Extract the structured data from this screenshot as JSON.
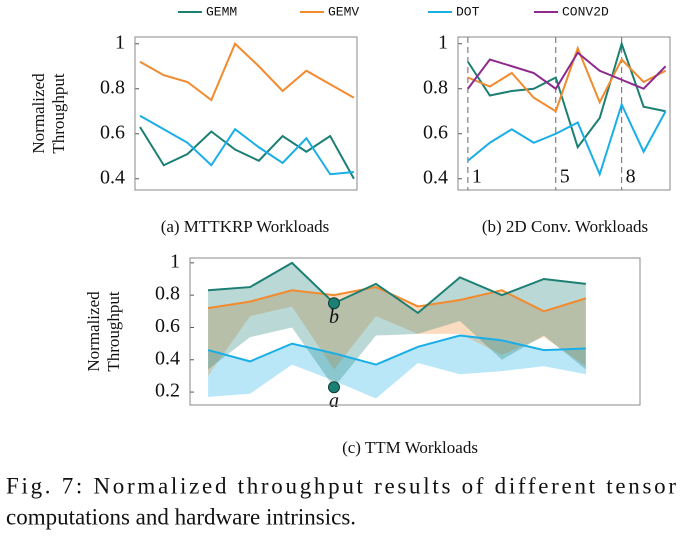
{
  "chart_data": [
    {
      "type": "line",
      "caption": "(a) MTTKRP Workloads",
      "ylabel_lines": [
        "Normalized",
        "Throughput"
      ],
      "x": [
        1,
        2,
        3,
        4,
        5,
        6,
        7,
        8,
        9,
        10
      ],
      "xlim": [
        0.79,
        10.13
      ],
      "ylim": [
        0.35,
        1.03
      ],
      "yticks": [
        0.4,
        0.6,
        0.8,
        1
      ],
      "series": [
        {
          "name": "GEMM",
          "color": "#1b7f74",
          "values": [
            0.63,
            0.46,
            0.51,
            0.61,
            0.53,
            0.48,
            0.59,
            0.52,
            0.59,
            0.4
          ]
        },
        {
          "name": "GEMV",
          "color": "#f28a2e",
          "values": [
            0.92,
            0.86,
            0.83,
            0.75,
            1.0,
            0.9,
            0.79,
            0.88,
            0.82,
            0.76
          ]
        },
        {
          "name": "DOT",
          "color": "#1aaee6",
          "values": [
            0.68,
            0.62,
            0.56,
            0.46,
            0.62,
            0.54,
            0.47,
            0.58,
            0.42,
            0.43
          ]
        }
      ]
    },
    {
      "type": "line",
      "caption": "(b) 2D Conv. Workloads",
      "x": [
        1,
        2,
        3,
        4,
        5,
        6,
        7,
        8,
        9,
        10
      ],
      "xlim": [
        0.55,
        10.2
      ],
      "xticks": [
        1,
        5,
        8
      ],
      "xgrid": true,
      "ylim": [
        0.35,
        1.03
      ],
      "yticks": [
        0.4,
        0.6,
        0.8,
        1
      ],
      "series": [
        {
          "name": "GEMM",
          "color": "#1b7f74",
          "values": [
            0.92,
            0.77,
            0.79,
            0.8,
            0.85,
            0.54,
            0.67,
            1.0,
            0.72,
            0.7
          ]
        },
        {
          "name": "GEMV",
          "color": "#f28a2e",
          "values": [
            0.85,
            0.81,
            0.87,
            0.76,
            0.7,
            0.98,
            0.74,
            0.93,
            0.83,
            0.88
          ]
        },
        {
          "name": "DOT",
          "color": "#1aaee6",
          "values": [
            0.48,
            0.56,
            0.62,
            0.56,
            0.6,
            0.65,
            0.42,
            0.73,
            0.52,
            0.7
          ]
        },
        {
          "name": "CONV2D",
          "color": "#8e2a8e",
          "values": [
            0.8,
            0.93,
            0.9,
            0.87,
            0.8,
            0.96,
            0.88,
            0.84,
            0.8,
            0.9
          ]
        }
      ]
    },
    {
      "type": "band",
      "caption": "(c) TTM Workloads",
      "ylabel_lines": [
        "Normalized",
        "Throughput"
      ],
      "x": [
        1,
        2,
        3,
        4,
        5,
        6,
        7,
        8,
        9,
        10
      ],
      "xlim": [
        0.57,
        11.29
      ],
      "ylim": [
        0.12,
        1.03
      ],
      "yticks": [
        0.2,
        0.4,
        0.6,
        0.8,
        1
      ],
      "series": [
        {
          "name": "DOT",
          "color": "#1aaee6",
          "values": [
            0.46,
            0.39,
            0.5,
            0.44,
            0.37,
            0.48,
            0.55,
            0.52,
            0.46,
            0.47
          ],
          "range_min": [
            0.17,
            0.19,
            0.37,
            0.27,
            0.16,
            0.38,
            0.31,
            0.33,
            0.36,
            0.31
          ]
        },
        {
          "name": "GEMV",
          "color": "#f28a2e",
          "values": [
            0.72,
            0.76,
            0.83,
            0.8,
            0.85,
            0.73,
            0.77,
            0.83,
            0.7,
            0.78
          ],
          "range_min": [
            0.3,
            0.67,
            0.73,
            0.34,
            0.67,
            0.56,
            0.56,
            0.43,
            0.54,
            0.36
          ]
        },
        {
          "name": "GEMM",
          "color": "#1b7f74",
          "values": [
            0.83,
            0.85,
            1.0,
            0.75,
            0.87,
            0.69,
            0.91,
            0.8,
            0.9,
            0.87
          ],
          "range_min": [
            0.34,
            0.54,
            0.6,
            0.23,
            0.55,
            0.56,
            0.64,
            0.4,
            0.55,
            0.34
          ]
        }
      ],
      "annotations": [
        {
          "text": "b",
          "x": 4,
          "y": 0.75
        },
        {
          "text": "a",
          "x": 4,
          "y": 0.23
        }
      ]
    }
  ],
  "figure_caption_lines": [
    "Fig. 7: Normalized throughput results of different tensor",
    "computations and hardware intrinsics."
  ]
}
